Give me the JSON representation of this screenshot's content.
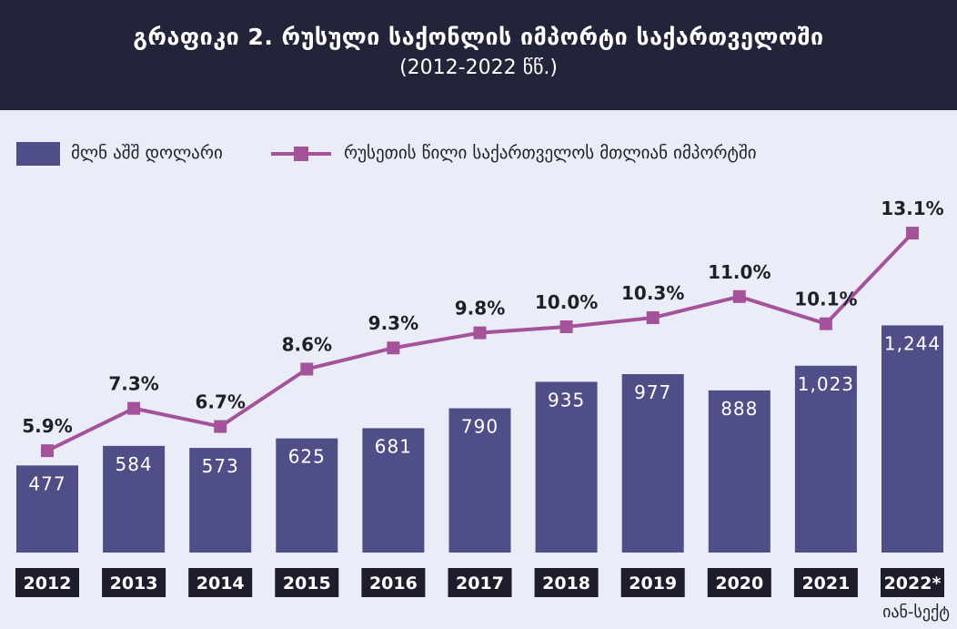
{
  "header": {
    "title": "გრაფიკი 2. რუსული საქონლის იმპორტი საქართველოში",
    "subtitle": "(2012-2022 წწ.)"
  },
  "legend": {
    "bar_label": "მლნ აშშ დოლარი",
    "line_label": "რუსეთის წილი საქართველოს  მთლიან იმპორტში"
  },
  "footnote": "იან-სექტ",
  "colors": {
    "bar": "#4f4e86",
    "line": "#a4529a",
    "tick_bg": "#1d1d2b",
    "header_bg": "#23243a"
  },
  "chart_data": {
    "type": "bar",
    "categories": [
      "2012",
      "2013",
      "2014",
      "2015",
      "2016",
      "2017",
      "2018",
      "2019",
      "2020",
      "2021",
      "2022*"
    ],
    "series": [
      {
        "name": "მლნ აშშ დოლარი",
        "type": "bar",
        "values": [
          477,
          584,
          573,
          625,
          681,
          790,
          935,
          977,
          888,
          1023,
          1244
        ],
        "labels": [
          "477",
          "584",
          "573",
          "625",
          "681",
          "790",
          "935",
          "977",
          "888",
          "1,023",
          "1,244"
        ]
      },
      {
        "name": "რუსეთის წილი საქართველოს  მთლიან იმპორტში",
        "type": "line",
        "values": [
          5.9,
          7.3,
          6.7,
          8.6,
          9.3,
          9.8,
          10.0,
          10.3,
          11.0,
          10.1,
          13.1
        ],
        "labels": [
          "5.9%",
          "7.3%",
          "6.7%",
          "8.6%",
          "9.3%",
          "9.8%",
          "10.0%",
          "10.3%",
          "11.0%",
          "10.1%",
          "13.1%"
        ]
      }
    ],
    "bar_ylim": [
      0,
      1500
    ],
    "line_ylim": [
      0,
      16.4
    ],
    "grid": false,
    "legend_position": "top-left"
  }
}
